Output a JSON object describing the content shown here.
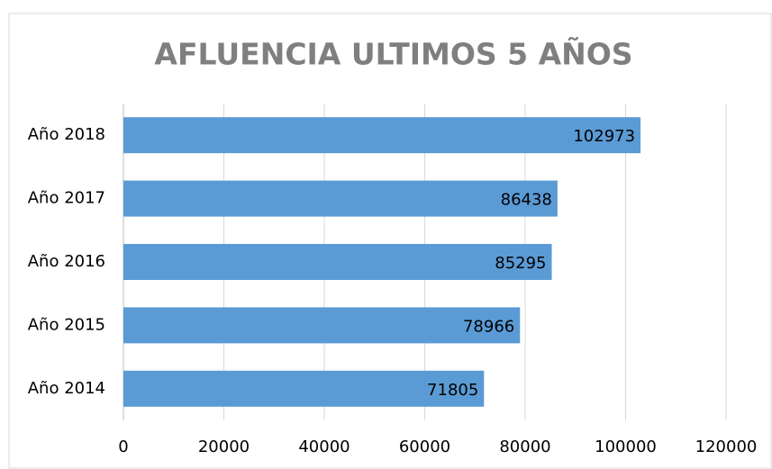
{
  "chart_data": {
    "type": "bar",
    "orientation": "horizontal",
    "title": "AFLUENCIA ULTIMOS 5 AÑOS",
    "categories": [
      "Año 2018",
      "Año 2017",
      "Año 2016",
      "Año 2015",
      "Año 2014"
    ],
    "values": [
      102973,
      86438,
      85295,
      78966,
      71805
    ],
    "color": "#5b9bd5",
    "xlim": [
      0,
      120000
    ],
    "xticks": [
      0,
      20000,
      40000,
      60000,
      80000,
      100000,
      120000
    ],
    "grid": true
  }
}
